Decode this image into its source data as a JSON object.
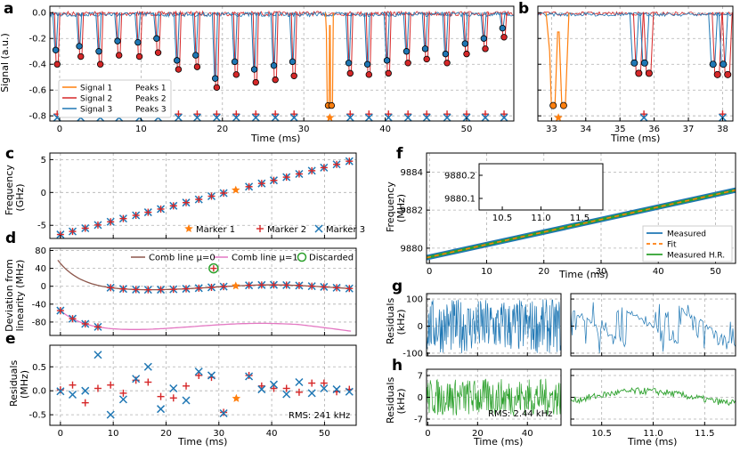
{
  "figure": {
    "panel_labels": {
      "a": "a",
      "b": "b",
      "c": "c",
      "d": "d",
      "e": "e",
      "f": "f",
      "g": "g",
      "h": "h"
    }
  },
  "colors": {
    "signal1": "#ff7f0e",
    "signal2": "#d62728",
    "signal3": "#1f77b4",
    "peak_red": "#d62728",
    "peak_blue": "#1f77b4",
    "marker_red": "#d62728",
    "marker_blue": "#1f77b4",
    "comb0": "#8c564b",
    "comb1": "#e377c2",
    "discard": "#2ca02c",
    "green": "#2ca02c",
    "grid": "#b0b0b0"
  },
  "chart_data": [
    {
      "id": "a",
      "type": "line",
      "xlabel": "Time (ms)",
      "ylabel": "Signal (a.u.)",
      "xlim": [
        -1.2,
        55.8
      ],
      "ylim": [
        -0.84,
        0.05
      ],
      "xticks": [
        "0",
        "10",
        "20",
        "30",
        "40",
        "50"
      ],
      "yticks": [
        "0.0",
        "-0.2",
        "-0.4",
        "-0.6",
        "-0.8"
      ],
      "legend": [
        "Signal 1",
        "Signal 2",
        "Signal 3",
        "Peaks 1",
        "Peaks 2",
        "Peaks 3"
      ],
      "dips": [
        {
          "t": -0.3,
          "d1": -0.4,
          "d2": -0.29
        },
        {
          "t": 2.6,
          "d1": -0.34,
          "d2": -0.26
        },
        {
          "t": 5.0,
          "d1": -0.4,
          "d2": -0.3
        },
        {
          "t": 7.3,
          "d1": -0.33,
          "d2": -0.22
        },
        {
          "t": 9.8,
          "d1": -0.34,
          "d2": -0.23
        },
        {
          "t": 12.1,
          "d1": -0.31,
          "d2": -0.2
        },
        {
          "t": 14.6,
          "d1": -0.44,
          "d2": -0.37
        },
        {
          "t": 16.9,
          "d1": -0.42,
          "d2": -0.33
        },
        {
          "t": 19.3,
          "d1": -0.58,
          "d2": -0.51
        },
        {
          "t": 21.7,
          "d1": -0.48,
          "d2": -0.38
        },
        {
          "t": 24.1,
          "d1": -0.54,
          "d2": -0.44
        },
        {
          "t": 26.5,
          "d1": -0.52,
          "d2": -0.41
        },
        {
          "t": 28.8,
          "d1": -0.49,
          "d2": -0.38
        },
        {
          "t": 35.7,
          "d1": -0.47,
          "d2": -0.39
        },
        {
          "t": 38.0,
          "d1": -0.48,
          "d2": -0.4
        },
        {
          "t": 40.4,
          "d1": -0.47,
          "d2": -0.37
        },
        {
          "t": 42.8,
          "d1": -0.39,
          "d2": -0.3
        },
        {
          "t": 45.1,
          "d1": -0.36,
          "d2": -0.28
        },
        {
          "t": 47.6,
          "d1": -0.39,
          "d2": -0.32
        },
        {
          "t": 50.0,
          "d1": -0.32,
          "d2": -0.24
        },
        {
          "t": 52.3,
          "d1": -0.28,
          "d2": -0.2
        },
        {
          "t": 54.6,
          "d1": -0.19,
          "d2": -0.12
        }
      ],
      "signal1_peaks": [
        33.1,
        33.3
      ],
      "signal1_depth": -0.72,
      "marker_y": -0.8
    },
    {
      "id": "b",
      "type": "line",
      "xlabel": "Time (ms)",
      "xlim": [
        32.6,
        38.3
      ],
      "ylim": [
        -0.84,
        0.05
      ],
      "xticks": [
        "33",
        "34",
        "35",
        "36",
        "37",
        "38"
      ],
      "dips": [
        {
          "t": 35.55,
          "d1": -0.47,
          "d2": -0.39
        },
        {
          "t": 35.85,
          "d1": -0.47,
          "d2": -0.39
        },
        {
          "t": 37.85,
          "d1": -0.48,
          "d2": -0.4
        },
        {
          "t": 38.15,
          "d1": -0.48,
          "d2": -0.4
        }
      ],
      "signal1_peaks": [
        33.1,
        33.3
      ],
      "signal1_depth": -0.72
    },
    {
      "id": "c",
      "type": "scatter",
      "ylabel": "Frequency (GHz)",
      "xlim": [
        -2,
        56
      ],
      "ylim": [
        -7,
        6
      ],
      "yticks": [
        "5",
        "0",
        "-5"
      ],
      "legend": [
        "Marker 1",
        "Marker 2",
        "Marker 3"
      ]
    },
    {
      "id": "d",
      "type": "scatter",
      "ylabel": "Deviation from linearity (MHz)",
      "xlim": [
        -2,
        56
      ],
      "ylim": [
        -110,
        85
      ],
      "yticks": [
        "80",
        "40",
        "0",
        "-40",
        "-80"
      ],
      "legend": [
        "Comb line μ=0",
        "Comb line μ=1",
        "Discarded"
      ]
    },
    {
      "id": "e",
      "type": "scatter",
      "xlabel": "Time (ms)",
      "ylabel": "Residuals (MHz)",
      "xlim": [
        -2,
        56
      ],
      "ylim": [
        -0.72,
        0.95
      ],
      "xticks": [
        "0",
        "10",
        "20",
        "30",
        "40",
        "50"
      ],
      "yticks": [
        "0.5",
        "0.0",
        "-0.5"
      ],
      "annotation": "RMS: 241 kHz",
      "red": [
        [
          0,
          0.02
        ],
        [
          2.3,
          0.12
        ],
        [
          4.7,
          -0.25
        ],
        [
          7.1,
          0.05
        ],
        [
          9.5,
          0.12
        ],
        [
          11.9,
          -0.05
        ],
        [
          14.3,
          0.22
        ],
        [
          16.6,
          0.18
        ],
        [
          19.0,
          -0.12
        ],
        [
          21.4,
          -0.15
        ],
        [
          23.8,
          0.1
        ],
        [
          26.2,
          0.32
        ],
        [
          28.6,
          0.28
        ],
        [
          30.9,
          -0.45
        ],
        [
          35.7,
          0.32
        ],
        [
          38.1,
          0.1
        ],
        [
          40.4,
          0.05
        ],
        [
          42.8,
          0.05
        ],
        [
          45.2,
          -0.03
        ],
        [
          47.6,
          0.16
        ],
        [
          49.9,
          0.16
        ],
        [
          52.3,
          -0.02
        ],
        [
          54.7,
          0.03
        ]
      ],
      "blue": [
        [
          0,
          -0.01
        ],
        [
          2.3,
          -0.08
        ],
        [
          4.7,
          0.0
        ],
        [
          7.1,
          0.75
        ],
        [
          9.5,
          -0.5
        ],
        [
          11.9,
          -0.18
        ],
        [
          14.3,
          0.25
        ],
        [
          16.6,
          0.5
        ],
        [
          19.0,
          -0.38
        ],
        [
          21.4,
          0.05
        ],
        [
          23.8,
          -0.2
        ],
        [
          26.2,
          0.4
        ],
        [
          28.6,
          0.32
        ],
        [
          30.9,
          -0.47
        ],
        [
          35.7,
          0.3
        ],
        [
          38.1,
          0.03
        ],
        [
          40.4,
          0.13
        ],
        [
          42.8,
          -0.07
        ],
        [
          45.2,
          0.18
        ],
        [
          47.6,
          -0.05
        ],
        [
          49.9,
          0.05
        ],
        [
          52.3,
          0.03
        ],
        [
          54.7,
          -0.02
        ]
      ],
      "orange": [
        [
          33.3,
          -0.16
        ]
      ]
    },
    {
      "id": "f",
      "type": "line",
      "xlabel": "Time (ms)",
      "ylabel": "Frequency (MHz)",
      "xlim": [
        -0.5,
        53.5
      ],
      "ylim": [
        9879.2,
        9885.0
      ],
      "xticks": [
        "0",
        "10",
        "20",
        "30",
        "40",
        "50"
      ],
      "yticks": [
        "9884",
        "9882",
        "9880"
      ],
      "legend": [
        "Measured",
        "Fit",
        "Measured H.R."
      ],
      "inset": {
        "xticks": [
          "10.5",
          "11.0",
          "11.5"
        ],
        "yticks": [
          "9880.2",
          "9880.1"
        ]
      }
    },
    {
      "id": "g",
      "type": "line",
      "ylabel": "Residuals (kHz)",
      "yticks": [
        "100",
        "0",
        "-100"
      ],
      "ylim": [
        -110,
        120
      ],
      "right_xlim": [
        10.2,
        11.8
      ]
    },
    {
      "id": "h",
      "type": "line",
      "xlabel": "Time (ms)",
      "ylabel": "Residuals (kHz)",
      "yticks": [
        "7",
        "0",
        "-7"
      ],
      "ylim": [
        -9,
        9
      ],
      "xticks_left": [
        "0",
        "20",
        "40"
      ],
      "xticks_right": [
        "10.5",
        "11.0",
        "11.5"
      ],
      "annotation": "RMS: 2.44 kHz"
    }
  ],
  "labels": {
    "a_ylabel": "Signal (a.u.)",
    "time": "Time (ms)",
    "c_ylabel1": "Frequency",
    "c_ylabel2": "(GHz)",
    "d_ylabel1": "Deviation from",
    "d_ylabel2": "linearity (MHz)",
    "e_ylabel1": "Residuals",
    "e_ylabel2": "(MHz)",
    "f_ylabel1": "Frequency",
    "f_ylabel2": "(MHz)",
    "gh_ylabel1": "Residuals",
    "gh_ylabel2": "(kHz)"
  }
}
